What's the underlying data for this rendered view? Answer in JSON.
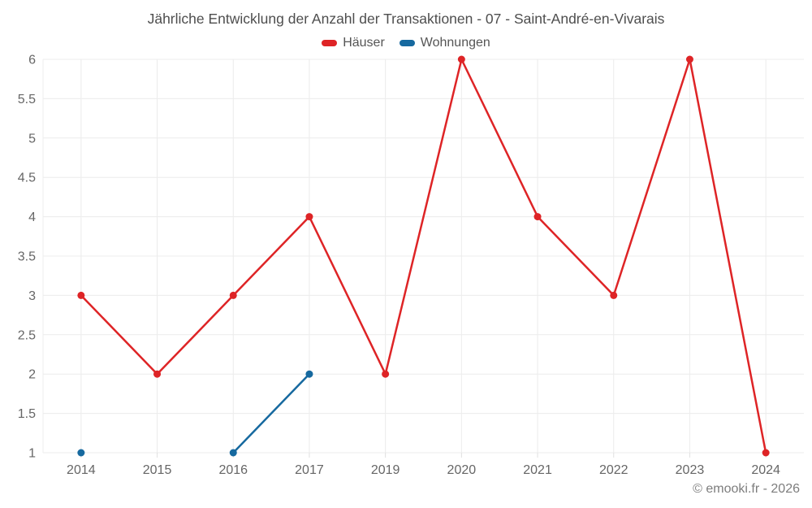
{
  "header": {
    "title": "Jährliche Entwicklung der Anzahl der Transaktionen - 07 - Saint-André-en-Vivarais"
  },
  "footer": {
    "copyright": "© emooki.fr - 2026"
  },
  "colors": {
    "haeuser": "#de2426",
    "wohnungen": "#16699f",
    "grid": "#ececec",
    "tick": "#e0e0e0",
    "axis_text": "#666666",
    "title_text": "#4e4e4e"
  },
  "chart_data": {
    "type": "line",
    "title": "Jährliche Entwicklung der Anzahl der Transaktionen - 07 - Saint-André-en-Vivarais",
    "categories": [
      "2014",
      "2015",
      "2016",
      "2017",
      "2019",
      "2020",
      "2021",
      "2022",
      "2023",
      "2024"
    ],
    "series": [
      {
        "name": "Häuser",
        "color": "#de2426",
        "values": [
          3,
          2,
          3,
          4,
          2,
          6,
          4,
          3,
          6,
          1
        ]
      },
      {
        "name": "Wohnungen",
        "color": "#16699f",
        "values": [
          1,
          null,
          1,
          2,
          null,
          null,
          null,
          null,
          null,
          null
        ]
      }
    ],
    "xlabel": "",
    "ylabel": "",
    "ylim": [
      1,
      6
    ],
    "ytick_step": 0.5,
    "grid": true,
    "legend_position": "top"
  }
}
